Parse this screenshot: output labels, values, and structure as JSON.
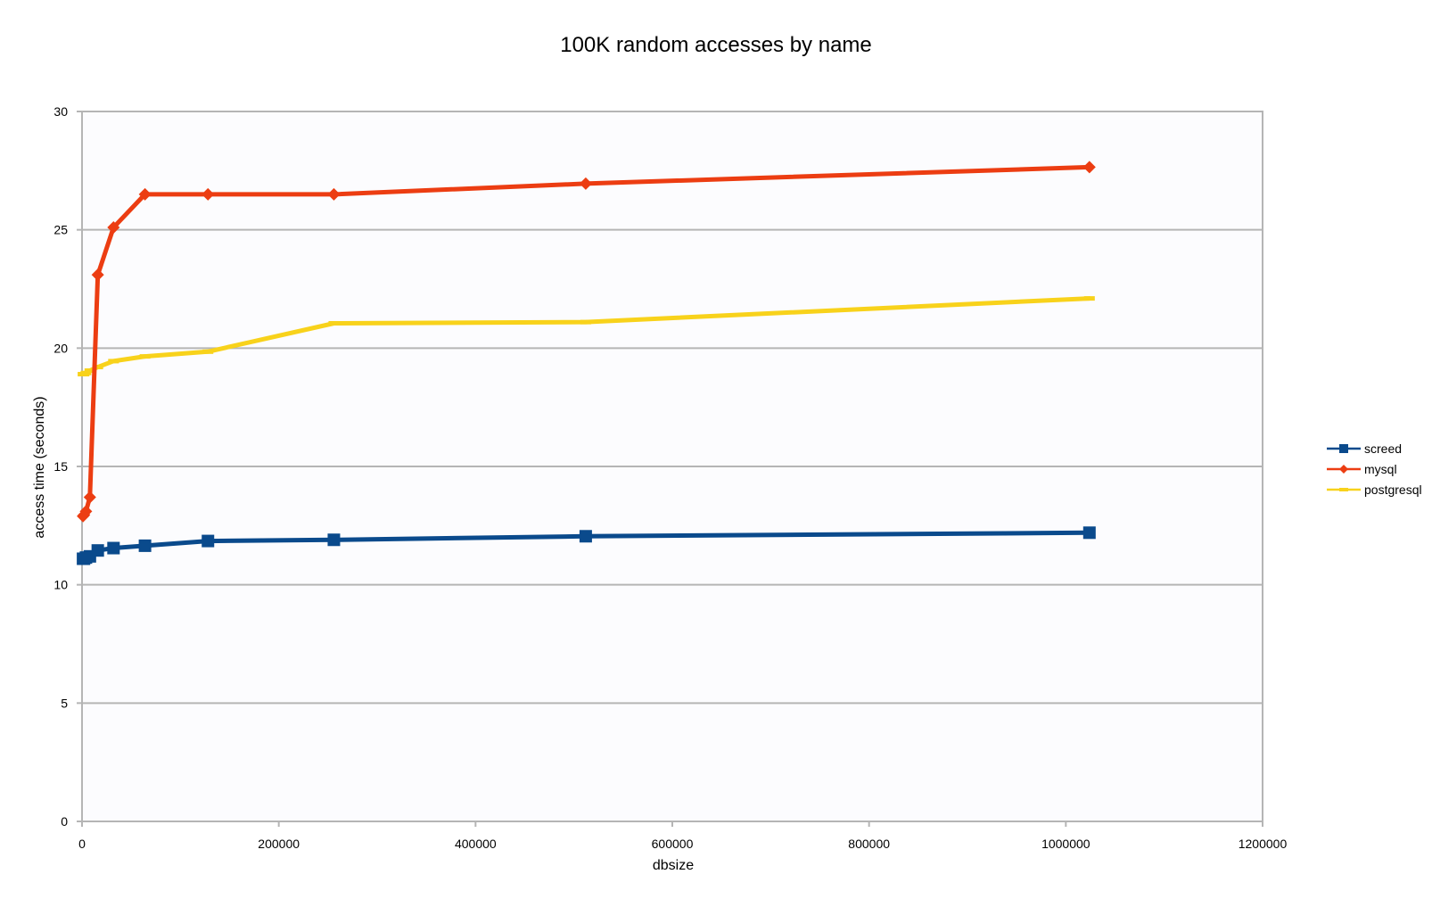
{
  "chart_data": {
    "type": "line",
    "title": "100K random accesses by name",
    "xlabel": "dbsize",
    "ylabel": "access time (seconds)",
    "xlim": [
      0,
      1200000
    ],
    "ylim": [
      0,
      30
    ],
    "xticks": [
      0,
      200000,
      400000,
      600000,
      800000,
      1000000,
      1200000
    ],
    "yticks": [
      0,
      5,
      10,
      15,
      20,
      25,
      30
    ],
    "xtick_labels": [
      "0",
      "200000",
      "400000",
      "600000",
      "800000",
      "1000000",
      "1200000"
    ],
    "ytick_labels": [
      "0",
      "5",
      "10",
      "15",
      "20",
      "25",
      "30"
    ],
    "grid": "horizontal",
    "legend_position": "right",
    "x": [
      1000,
      2000,
      4000,
      8000,
      16000,
      32000,
      64000,
      128000,
      256000,
      512000,
      1024000
    ],
    "series": [
      {
        "name": "screed",
        "color": "#0a4a8c",
        "marker": "square",
        "values": [
          11.1,
          11.1,
          11.15,
          11.2,
          11.45,
          11.55,
          11.65,
          11.85,
          11.9,
          12.05,
          12.2
        ]
      },
      {
        "name": "mysql",
        "color": "#ec3d12",
        "marker": "diamond",
        "values": [
          12.9,
          12.95,
          13.1,
          13.7,
          23.1,
          25.1,
          26.5,
          26.5,
          26.5,
          26.95,
          27.65
        ]
      },
      {
        "name": "postgresql",
        "color": "#f8d21b",
        "marker": "dash",
        "values": [
          18.9,
          18.9,
          18.95,
          19.05,
          19.2,
          19.45,
          19.65,
          19.85,
          21.05,
          21.1,
          22.1
        ]
      }
    ]
  }
}
